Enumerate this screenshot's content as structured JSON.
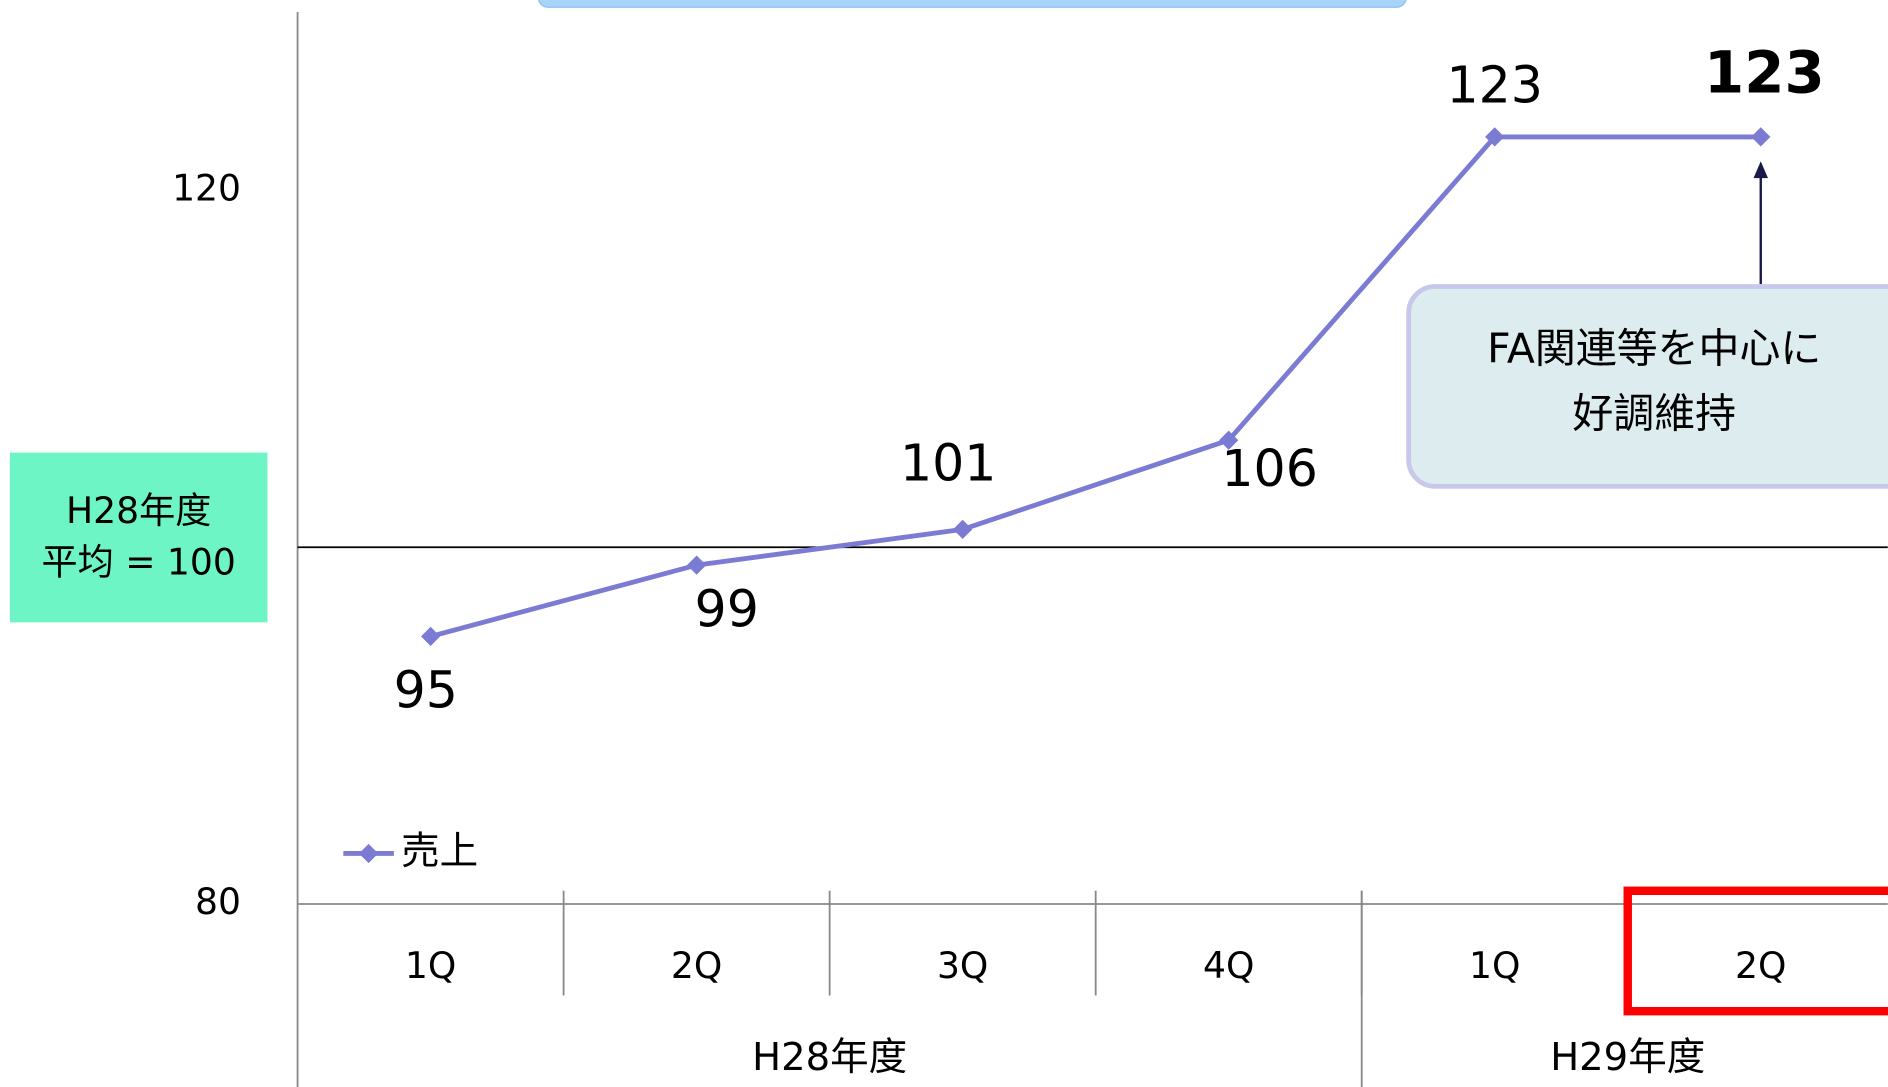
{
  "chart_data": {
    "type": "line",
    "categories": [
      "1Q",
      "2Q",
      "3Q",
      "4Q",
      "1Q",
      "2Q"
    ],
    "category_groups": [
      {
        "label": "H28年度",
        "span": 4
      },
      {
        "label": "H29年度",
        "span": 2
      }
    ],
    "series": [
      {
        "name": "売上",
        "color": "#7b7bd4",
        "values": [
          95,
          99,
          101,
          106,
          123,
          123
        ]
      }
    ],
    "ylim": [
      80,
      130
    ],
    "yticks": [
      80,
      120
    ],
    "grid": false,
    "reference_line": 100,
    "reference_label": [
      "H28年度",
      "平均 = 100"
    ],
    "annotation": {
      "lines": [
        "FA関連等を中心に",
        "好調維持"
      ],
      "index": 5
    },
    "highlight_index": 5,
    "legend": "lower-left"
  }
}
